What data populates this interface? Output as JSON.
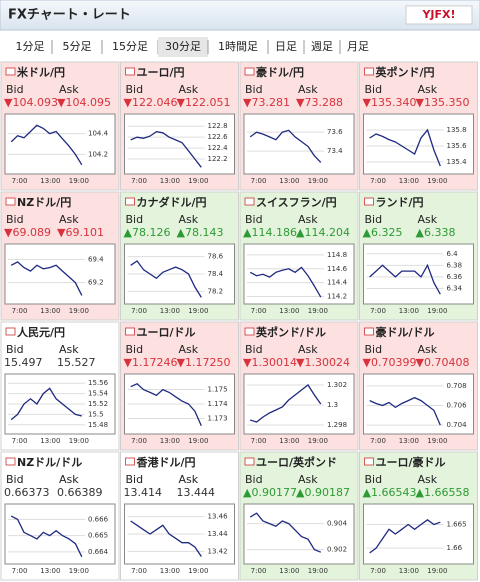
{
  "header": {
    "title": "FXチャート・レート",
    "logo": "YJFX!"
  },
  "tabs": [
    "1分足",
    "5分足",
    "15分足",
    "30分足",
    "1時間足",
    "日足",
    "週足",
    "月足"
  ],
  "selected_tab": 3,
  "labels": {
    "bid": "Bid",
    "ask": "Ask"
  },
  "x_labels": [
    "7:00",
    "13:00",
    "19:00"
  ],
  "colors": {
    "down": "#fde0e0",
    "up": "#e4f4dc",
    "flat": "#ffffff",
    "line": "#1f2a80",
    "text_down": "#d8323c",
    "text_up": "#2e9a35",
    "text_flat": "#333333"
  },
  "panels": [
    {
      "name": "米ドル/円",
      "bid": "▼104.093",
      "ask": "▼104.095",
      "trend": "down",
      "ylim": [
        104.05,
        104.55
      ],
      "yticks": [
        104.4,
        104.2
      ],
      "values": [
        104.32,
        104.38,
        104.36,
        104.42,
        104.48,
        104.45,
        104.4,
        104.42,
        104.35,
        104.28,
        104.2,
        104.1
      ]
    },
    {
      "name": "ユーロ/円",
      "bid": "▼122.046",
      "ask": "▼122.051",
      "trend": "down",
      "ylim": [
        122.0,
        122.95
      ],
      "yticks": [
        122.8,
        122.6,
        122.4,
        122.2
      ],
      "values": [
        122.55,
        122.6,
        122.58,
        122.62,
        122.7,
        122.68,
        122.6,
        122.55,
        122.5,
        122.35,
        122.2,
        122.05
      ]
    },
    {
      "name": "豪ドル/円",
      "bid": "▼73.281",
      "ask": "▼73.288",
      "trend": "down",
      "ylim": [
        73.2,
        73.75
      ],
      "yticks": [
        73.6,
        73.4
      ],
      "values": [
        73.55,
        73.6,
        73.58,
        73.55,
        73.52,
        73.6,
        73.62,
        73.55,
        73.5,
        73.45,
        73.35,
        73.28
      ]
    },
    {
      "name": "英ポンド/円",
      "bid": "▼135.340",
      "ask": "▼135.350",
      "trend": "down",
      "ylim": [
        135.3,
        135.95
      ],
      "yticks": [
        135.8,
        135.6,
        135.4
      ],
      "values": [
        135.7,
        135.75,
        135.72,
        135.68,
        135.65,
        135.6,
        135.55,
        135.5,
        135.7,
        135.8,
        135.55,
        135.35
      ]
    },
    {
      "name": "NZドル/円",
      "bid": "▼69.089",
      "ask": "▼69.101",
      "trend": "down",
      "ylim": [
        69.05,
        69.5
      ],
      "yticks": [
        69.4,
        69.2
      ],
      "values": [
        69.35,
        69.38,
        69.33,
        69.3,
        69.35,
        69.32,
        69.33,
        69.35,
        69.3,
        69.25,
        69.2,
        69.09
      ]
    },
    {
      "name": "カナダドル/円",
      "bid": "▲78.126",
      "ask": "▲78.143",
      "trend": "up",
      "ylim": [
        78.1,
        78.7
      ],
      "yticks": [
        78.6,
        78.4,
        78.2
      ],
      "values": [
        78.5,
        78.55,
        78.45,
        78.4,
        78.35,
        78.42,
        78.45,
        78.48,
        78.45,
        78.4,
        78.25,
        78.13
      ]
    },
    {
      "name": "スイスフラン/円",
      "bid": "▲114.186",
      "ask": "▲114.204",
      "trend": "up",
      "ylim": [
        114.15,
        114.9
      ],
      "yticks": [
        114.8,
        114.6,
        114.4,
        114.2
      ],
      "values": [
        114.55,
        114.5,
        114.52,
        114.48,
        114.55,
        114.58,
        114.6,
        114.55,
        114.62,
        114.5,
        114.35,
        114.19
      ]
    },
    {
      "name": "ランド/円",
      "bid": "▲6.325",
      "ask": "▲6.338",
      "trend": "up",
      "ylim": [
        6.32,
        6.41
      ],
      "yticks": [
        6.4,
        6.38,
        6.36,
        6.34
      ],
      "values": [
        6.36,
        6.37,
        6.38,
        6.37,
        6.36,
        6.37,
        6.37,
        6.37,
        6.36,
        6.38,
        6.35,
        6.33
      ]
    },
    {
      "name": "人民元/円",
      "bid": "15.497",
      "ask": "15.527",
      "trend": "flat",
      "ylim": [
        15.47,
        15.57
      ],
      "yticks": [
        15.56,
        15.54,
        15.52,
        15.5,
        15.48
      ],
      "values": [
        15.49,
        15.5,
        15.52,
        15.53,
        15.52,
        15.54,
        15.55,
        15.53,
        15.52,
        15.51,
        15.5,
        15.497
      ]
    },
    {
      "name": "ユーロ/ドル",
      "bid": "▼1.17246",
      "ask": "▼1.17250",
      "trend": "down",
      "ylim": [
        1.1722,
        1.1758
      ],
      "yticks": [
        1.175,
        1.174,
        1.173
      ],
      "values": [
        1.1752,
        1.1754,
        1.175,
        1.1748,
        1.1746,
        1.175,
        1.1748,
        1.1745,
        1.1742,
        1.174,
        1.1735,
        1.1725
      ]
    },
    {
      "name": "英ポンド/ドル",
      "bid": "▼1.30014",
      "ask": "▼1.30024",
      "trend": "down",
      "ylim": [
        1.2975,
        1.3027
      ],
      "yticks": [
        1.302,
        1.3,
        1.298
      ],
      "values": [
        1.2985,
        1.2983,
        1.2988,
        1.2992,
        1.2995,
        1.2998,
        1.3005,
        1.301,
        1.3015,
        1.302,
        1.301,
        1.3001
      ]
    },
    {
      "name": "豪ドル/ドル",
      "bid": "▼0.70399",
      "ask": "▼0.70408",
      "trend": "down",
      "ylim": [
        0.7035,
        0.7088
      ],
      "yticks": [
        0.708,
        0.706,
        0.704
      ],
      "values": [
        0.7065,
        0.7062,
        0.706,
        0.7063,
        0.7058,
        0.7062,
        0.7065,
        0.7068,
        0.7065,
        0.706,
        0.7055,
        0.704
      ]
    },
    {
      "name": "NZドル/ドル",
      "bid": "0.66373",
      "ask": "0.66389",
      "trend": "flat",
      "ylim": [
        0.6635,
        0.6667
      ],
      "yticks": [
        0.666,
        0.665,
        0.664
      ],
      "values": [
        0.6662,
        0.666,
        0.6652,
        0.665,
        0.6648,
        0.6652,
        0.665,
        0.6653,
        0.665,
        0.6648,
        0.6645,
        0.6637
      ]
    },
    {
      "name": "香港ドル/円",
      "bid": "13.414",
      "ask": "13.444",
      "trend": "flat",
      "ylim": [
        13.41,
        13.47
      ],
      "yticks": [
        13.46,
        13.44,
        13.42
      ],
      "values": [
        13.455,
        13.45,
        13.445,
        13.44,
        13.445,
        13.45,
        13.44,
        13.435,
        13.43,
        13.43,
        13.425,
        13.414
      ]
    },
    {
      "name": "ユーロ/英ポンド",
      "bid": "▲0.90177",
      "ask": "▲0.90187",
      "trend": "up",
      "ylim": [
        0.9012,
        0.9052
      ],
      "yticks": [
        0.904,
        0.902
      ],
      "values": [
        0.9045,
        0.9048,
        0.9042,
        0.904,
        0.9038,
        0.9042,
        0.904,
        0.9035,
        0.903,
        0.9028,
        0.902,
        0.9018
      ]
    },
    {
      "name": "ユーロ/豪ドル",
      "bid": "▲1.66543",
      "ask": "▲1.66558",
      "trend": "up",
      "ylim": [
        1.6575,
        1.6685
      ],
      "yticks": [
        1.665,
        1.66
      ],
      "values": [
        1.659,
        1.66,
        1.662,
        1.664,
        1.663,
        1.664,
        1.665,
        1.664,
        1.665,
        1.666,
        1.665,
        1.6655
      ]
    }
  ]
}
